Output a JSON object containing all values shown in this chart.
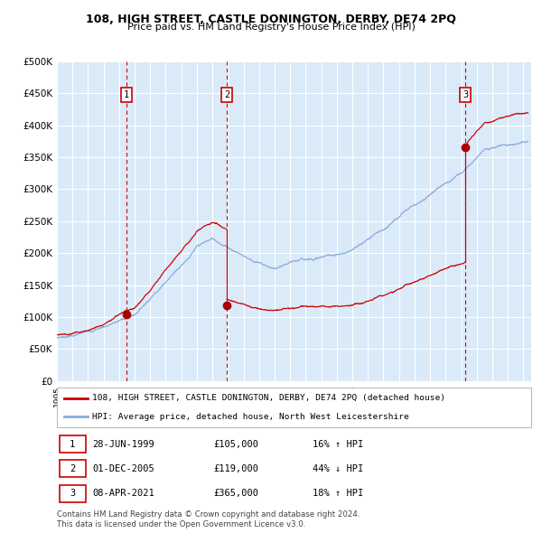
{
  "title": "108, HIGH STREET, CASTLE DONINGTON, DERBY, DE74 2PQ",
  "subtitle": "Price paid vs. HM Land Registry's House Price Index (HPI)",
  "transactions": [
    {
      "num": 1,
      "date_label": "28-JUN-1999",
      "price": 105000,
      "hpi_pct": "16% ↑ HPI",
      "date_x": 1999.49
    },
    {
      "num": 2,
      "date_label": "01-DEC-2005",
      "price": 119000,
      "hpi_pct": "44% ↓ HPI",
      "date_x": 2005.92
    },
    {
      "num": 3,
      "date_label": "08-APR-2021",
      "price": 365000,
      "hpi_pct": "18% ↑ HPI",
      "date_x": 2021.27
    }
  ],
  "ylabel_ticks": [
    "£0",
    "£50K",
    "£100K",
    "£150K",
    "£200K",
    "£250K",
    "£300K",
    "£350K",
    "£400K",
    "£450K",
    "£500K"
  ],
  "ytick_vals": [
    0,
    50000,
    100000,
    150000,
    200000,
    250000,
    300000,
    350000,
    400000,
    450000,
    500000
  ],
  "xmin": 1995.0,
  "xmax": 2025.5,
  "ymin": 0,
  "ymax": 500000,
  "bg_color": "#daeaf8",
  "grid_color": "#ffffff",
  "red_line_color": "#cc0000",
  "blue_line_color": "#88aadd",
  "transaction_marker_color": "#aa0000",
  "vline_color": "#cc0000",
  "legend_label_red": "108, HIGH STREET, CASTLE DONINGTON, DERBY, DE74 2PQ (detached house)",
  "legend_label_blue": "HPI: Average price, detached house, North West Leicestershire",
  "footnote": "Contains HM Land Registry data © Crown copyright and database right 2024.\nThis data is licensed under the Open Government Licence v3.0."
}
